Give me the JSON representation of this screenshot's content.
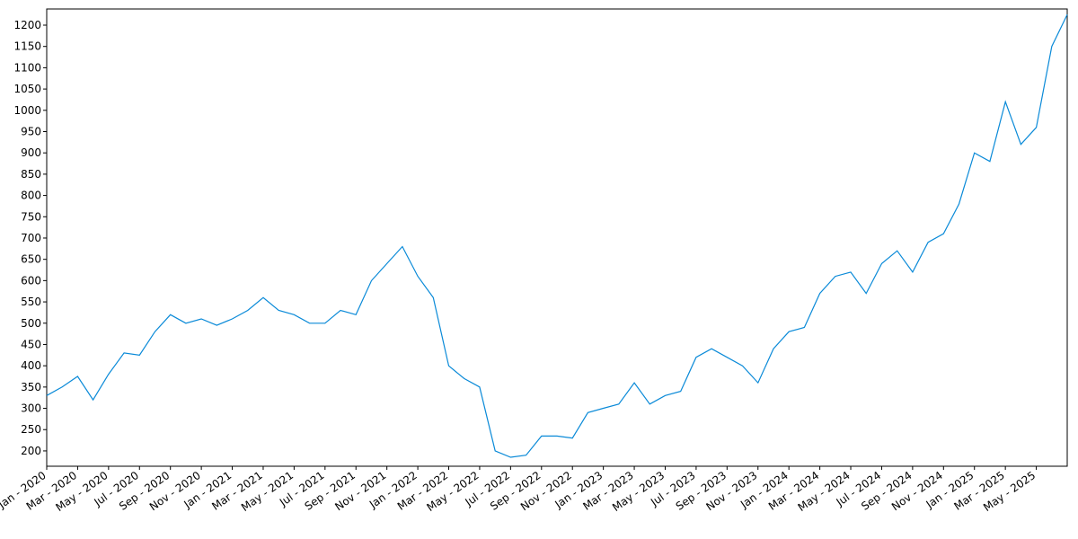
{
  "chart_data": {
    "type": "line",
    "x": [
      "2020-01",
      "2020-02",
      "2020-03",
      "2020-04",
      "2020-05",
      "2020-06",
      "2020-07",
      "2020-08",
      "2020-09",
      "2020-10",
      "2020-11",
      "2020-12",
      "2021-01",
      "2021-02",
      "2021-03",
      "2021-04",
      "2021-05",
      "2021-06",
      "2021-07",
      "2021-08",
      "2021-09",
      "2021-10",
      "2021-11",
      "2021-12",
      "2022-01",
      "2022-02",
      "2022-03",
      "2022-04",
      "2022-05",
      "2022-06",
      "2022-07",
      "2022-08",
      "2022-09",
      "2022-10",
      "2022-11",
      "2022-12",
      "2023-01",
      "2023-02",
      "2023-03",
      "2023-04",
      "2023-05",
      "2023-06",
      "2023-07",
      "2023-08",
      "2023-09",
      "2023-10",
      "2023-11",
      "2023-12",
      "2024-01",
      "2024-02",
      "2024-03",
      "2024-04",
      "2024-05",
      "2024-06",
      "2024-07",
      "2024-08",
      "2024-09",
      "2024-10",
      "2024-11",
      "2024-12",
      "2025-01",
      "2025-02",
      "2025-03",
      "2025-04",
      "2025-05",
      "2025-06",
      "2025-07"
    ],
    "series": [
      {
        "color": "#0a8ad8",
        "values": [
          330,
          350,
          375,
          320,
          380,
          430,
          425,
          480,
          520,
          500,
          510,
          495,
          510,
          530,
          560,
          530,
          520,
          500,
          500,
          530,
          520,
          600,
          640,
          680,
          610,
          560,
          400,
          370,
          350,
          200,
          185,
          190,
          235,
          235,
          230,
          290,
          300,
          310,
          360,
          310,
          330,
          340,
          420,
          440,
          420,
          400,
          360,
          440,
          480,
          490,
          570,
          610,
          620,
          570,
          640,
          670,
          620,
          690,
          710,
          780,
          900,
          880,
          1020,
          920,
          960,
          1150,
          1225
        ]
      }
    ],
    "xlim": [
      "2020-01",
      "2025-07"
    ],
    "xticks": [
      {
        "value": "2020-01",
        "label": "Jan - 2020"
      },
      {
        "value": "2020-03",
        "label": "Mar - 2020"
      },
      {
        "value": "2020-05",
        "label": "May - 2020"
      },
      {
        "value": "2020-07",
        "label": "Jul - 2020"
      },
      {
        "value": "2020-09",
        "label": "Sep - 2020"
      },
      {
        "value": "2020-11",
        "label": "Nov - 2020"
      },
      {
        "value": "2021-01",
        "label": "Jan - 2021"
      },
      {
        "value": "2021-03",
        "label": "Mar - 2021"
      },
      {
        "value": "2021-05",
        "label": "May - 2021"
      },
      {
        "value": "2021-07",
        "label": "Jul - 2021"
      },
      {
        "value": "2021-09",
        "label": "Sep - 2021"
      },
      {
        "value": "2021-11",
        "label": "Nov - 2021"
      },
      {
        "value": "2022-01",
        "label": "Jan - 2022"
      },
      {
        "value": "2022-03",
        "label": "Mar - 2022"
      },
      {
        "value": "2022-05",
        "label": "May - 2022"
      },
      {
        "value": "2022-07",
        "label": "Jul - 2022"
      },
      {
        "value": "2022-09",
        "label": "Sep - 2022"
      },
      {
        "value": "2022-11",
        "label": "Nov - 2022"
      },
      {
        "value": "2023-01",
        "label": "Jan - 2023"
      },
      {
        "value": "2023-03",
        "label": "Mar - 2023"
      },
      {
        "value": "2023-05",
        "label": "May - 2023"
      },
      {
        "value": "2023-07",
        "label": "Jul - 2023"
      },
      {
        "value": "2023-09",
        "label": "Sep - 2023"
      },
      {
        "value": "2023-11",
        "label": "Nov - 2023"
      },
      {
        "value": "2024-01",
        "label": "Jan - 2024"
      },
      {
        "value": "2024-03",
        "label": "Mar - 2024"
      },
      {
        "value": "2024-05",
        "label": "May - 2024"
      },
      {
        "value": "2024-07",
        "label": "Jul - 2024"
      },
      {
        "value": "2024-09",
        "label": "Sep - 2024"
      },
      {
        "value": "2024-11",
        "label": "Nov - 2024"
      },
      {
        "value": "2025-01",
        "label": "Jan - 2025"
      },
      {
        "value": "2025-03",
        "label": "Mar - 2025"
      },
      {
        "value": "2025-05",
        "label": "May - 2025"
      }
    ],
    "ylim": [
      164,
      1238
    ],
    "yticks": [
      200,
      250,
      300,
      350,
      400,
      450,
      500,
      550,
      600,
      650,
      700,
      750,
      800,
      850,
      900,
      950,
      1000,
      1050,
      1100,
      1150,
      1200
    ],
    "grid": false
  }
}
